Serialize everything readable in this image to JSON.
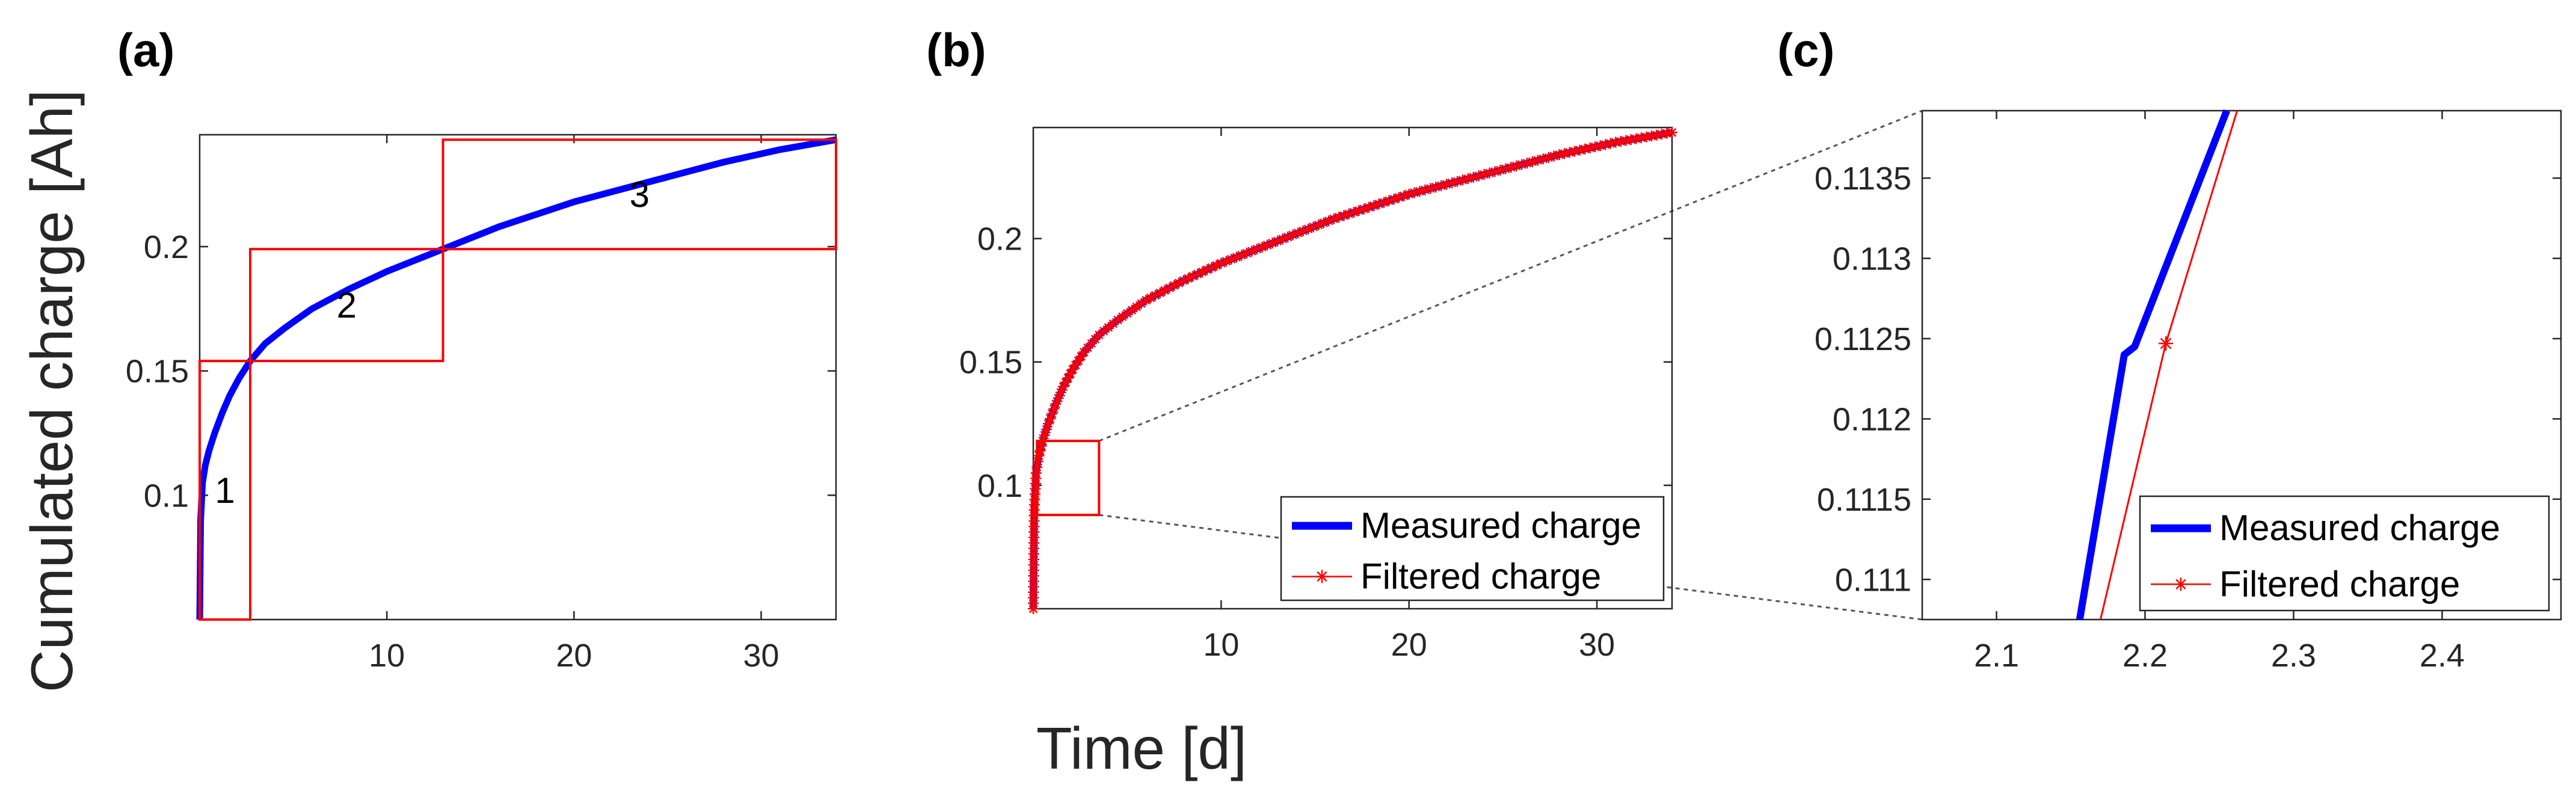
{
  "figure": {
    "shared_xlabel": "Time [d]",
    "shared_ylabel": "Cumulated charge [Ah]"
  },
  "colors": {
    "measured": "#0000ff",
    "filtered": "#ff0000",
    "box": "#ff0000",
    "axis": "#262626",
    "connector": "#555555"
  },
  "chart_data": [
    {
      "panel": "(a)",
      "type": "line",
      "xlim": [
        0,
        34
      ],
      "ylim": [
        0.05,
        0.245
      ],
      "xticks": [
        10,
        20,
        30
      ],
      "yticks": [
        0.1,
        0.15,
        0.2
      ],
      "ytick_labels": [
        "0.1",
        "0.15",
        "0.2"
      ],
      "series": [
        {
          "name": "Measured charge",
          "x": [
            0,
            0.05,
            0.15,
            0.3,
            0.5,
            0.8,
            1.2,
            1.6,
            2.1,
            2.7,
            3.5,
            4.5,
            6,
            8,
            10,
            13,
            16,
            20,
            24,
            28,
            31,
            34
          ],
          "y": [
            0.05,
            0.09,
            0.105,
            0.112,
            0.118,
            0.125,
            0.133,
            0.14,
            0.147,
            0.154,
            0.161,
            0.167,
            0.175,
            0.183,
            0.19,
            0.199,
            0.208,
            0.218,
            0.226,
            0.234,
            0.239,
            0.243
          ]
        }
      ],
      "regions": [
        {
          "label": "1",
          "x0": 0,
          "x1": 2.7,
          "y0": 0.05,
          "y1": 0.154
        },
        {
          "label": "2",
          "x0": 2.7,
          "x1": 13,
          "y0": 0.154,
          "y1": 0.199
        },
        {
          "label": "3",
          "x0": 13,
          "x1": 34,
          "y0": 0.199,
          "y1": 0.243
        }
      ]
    },
    {
      "panel": "(b)",
      "type": "line",
      "xlim": [
        0,
        34
      ],
      "ylim": [
        0.05,
        0.245
      ],
      "xticks": [
        10,
        20,
        30
      ],
      "yticks": [
        0.1,
        0.15,
        0.2
      ],
      "ytick_labels": [
        "0.1",
        "0.15",
        "0.2"
      ],
      "series": [
        {
          "name": "Measured charge",
          "x": [
            0,
            0.05,
            0.15,
            0.3,
            0.5,
            0.8,
            1.2,
            1.6,
            2.1,
            2.7,
            3.5,
            4.5,
            6,
            8,
            10,
            13,
            16,
            20,
            24,
            28,
            31,
            34
          ],
          "y": [
            0.05,
            0.09,
            0.105,
            0.112,
            0.118,
            0.125,
            0.133,
            0.14,
            0.147,
            0.154,
            0.161,
            0.167,
            0.175,
            0.183,
            0.19,
            0.199,
            0.208,
            0.218,
            0.226,
            0.234,
            0.239,
            0.243
          ]
        },
        {
          "name": "Filtered charge",
          "x": [
            0,
            0.05,
            0.15,
            0.3,
            0.5,
            0.8,
            1.2,
            1.6,
            2.1,
            2.7,
            3.5,
            4.5,
            6,
            8,
            10,
            13,
            16,
            20,
            24,
            28,
            31,
            34
          ],
          "y": [
            0.05,
            0.09,
            0.105,
            0.112,
            0.118,
            0.125,
            0.133,
            0.14,
            0.147,
            0.154,
            0.161,
            0.167,
            0.175,
            0.183,
            0.19,
            0.199,
            0.208,
            0.218,
            0.226,
            0.234,
            0.239,
            0.243
          ]
        }
      ],
      "zoom_box": {
        "x0": 0.2,
        "x1": 3.5,
        "y0": 0.088,
        "y1": 0.118
      },
      "legend": {
        "location": "bottom-right",
        "entries": [
          "Measured charge",
          "Filtered charge"
        ]
      }
    },
    {
      "panel": "(c)",
      "type": "line",
      "xlim": [
        2.05,
        2.48
      ],
      "ylim": [
        0.11075,
        0.11392
      ],
      "xticks": [
        2.1,
        2.2,
        2.3,
        2.4
      ],
      "xtick_labels": [
        "2.1",
        "2.2",
        "2.3",
        "2.4"
      ],
      "yticks": [
        0.111,
        0.1115,
        0.112,
        0.1125,
        0.113,
        0.1135
      ],
      "ytick_labels": [
        "0.111",
        "0.1115",
        "0.112",
        "0.1125",
        "0.113",
        "0.1135"
      ],
      "series": [
        {
          "name": "Measured charge",
          "x": [
            2.156,
            2.186,
            2.193,
            2.255
          ],
          "y": [
            0.11075,
            0.1124,
            0.11245,
            0.11392
          ]
        },
        {
          "name": "Filtered charge",
          "x": [
            2.17,
            2.214,
            2.262
          ],
          "y": [
            0.11075,
            0.11247,
            0.11392
          ],
          "marker_points": [
            [
              2.214,
              0.11247
            ]
          ]
        }
      ],
      "legend": {
        "location": "bottom-right",
        "entries": [
          "Measured charge",
          "Filtered charge"
        ]
      }
    }
  ]
}
